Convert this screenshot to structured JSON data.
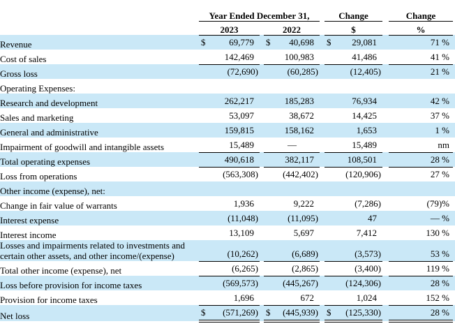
{
  "document_title": "Consolidated statements of operations comparison table",
  "colors": {
    "row_highlight": "#cae8f7",
    "text": "#000000",
    "rule": "#000000",
    "background": "#ffffff"
  },
  "table": {
    "header": {
      "year_group": "Year Ended December 31,",
      "change_dollar": "Change",
      "change_percent": "Change",
      "col_2023": "2023",
      "col_2022": "2022",
      "dollar_symbol": "$",
      "percent_symbol": "%"
    },
    "rows": [
      {
        "label": "Revenue",
        "sym1": "$",
        "v1": "69,779",
        "sym2": "$",
        "v2": "40,698",
        "sym3": "$",
        "v3": "29,081",
        "v4": "71 %",
        "highlight": true,
        "underline": "none"
      },
      {
        "label": "Cost of sales",
        "v1": "142,469",
        "v2": "100,983",
        "v3": "41,486",
        "v4": "41 %",
        "highlight": false,
        "underline": "single"
      },
      {
        "label": "Gross loss",
        "v1": "(72,690)",
        "v2": "(60,285)",
        "v3": "(12,405)",
        "v4": "21 %",
        "highlight": true,
        "underline": "none"
      },
      {
        "label": "Operating Expenses:",
        "section": true,
        "highlight": false
      },
      {
        "label": "Research and development",
        "v1": "262,217",
        "v2": "185,283",
        "v3": "76,934",
        "v4": "42 %",
        "highlight": true,
        "underline": "none"
      },
      {
        "label": "Sales and marketing",
        "v1": "53,097",
        "v2": "38,672",
        "v3": "14,425",
        "v4": "37 %",
        "highlight": false,
        "underline": "none"
      },
      {
        "label": "General and administrative",
        "v1": "159,815",
        "v2": "158,162",
        "v3": "1,653",
        "v4": "1 %",
        "highlight": true,
        "underline": "none"
      },
      {
        "label": "Impairment of goodwill and intangible assets",
        "v1": "15,489",
        "v2": "—",
        "center_v2": true,
        "v3": "15,489",
        "v4": "nm",
        "highlight": false,
        "underline": "single"
      },
      {
        "label": "Total operating expenses",
        "v1": "490,618",
        "v2": "382,117",
        "v3": "108,501",
        "v4": "28 %",
        "highlight": true,
        "underline": "single"
      },
      {
        "label": "Loss from operations",
        "v1": "(563,308)",
        "v2": "(442,402)",
        "v3": "(120,906)",
        "v4": "27 %",
        "highlight": false,
        "underline": "none"
      },
      {
        "label": "Other income (expense), net:",
        "section": true,
        "highlight": true
      },
      {
        "label": "Change in fair value of warrants",
        "v1": "1,936",
        "v2": "9,222",
        "v3": "(7,286)",
        "v4": "(79)%",
        "highlight": false,
        "underline": "none"
      },
      {
        "label": "Interest expense",
        "v1": "(11,048)",
        "v2": "(11,095)",
        "v3": "47",
        "v4": "— %",
        "highlight": true,
        "underline": "none"
      },
      {
        "label": "Interest income",
        "v1": "13,109",
        "v2": "5,697",
        "v3": "7,412",
        "v4": "130 %",
        "highlight": false,
        "underline": "none"
      },
      {
        "label": "Losses and impairments related to investments and certain other assets, and other income/(expense)",
        "v1": "(10,262)",
        "v2": "(6,689)",
        "v3": "(3,573)",
        "v4": "53 %",
        "highlight": true,
        "underline": "single"
      },
      {
        "label": "Total other income (expense), net",
        "v1": "(6,265)",
        "v2": "(2,865)",
        "v3": "(3,400)",
        "v4": "119 %",
        "highlight": false,
        "underline": "single"
      },
      {
        "label": "Loss before provision for income taxes",
        "v1": "(569,573)",
        "v2": "(445,267)",
        "v3": "(124,306)",
        "v4": "28 %",
        "highlight": true,
        "underline": "none"
      },
      {
        "label": "Provision for income taxes",
        "v1": "1,696",
        "v2": "672",
        "v3": "1,024",
        "v4": "152 %",
        "highlight": false,
        "underline": "single"
      },
      {
        "label": "Net loss",
        "sym1": "$",
        "v1": "(571,269)",
        "sym2": "$",
        "v2": "(445,939)",
        "sym3": "$",
        "v3": "(125,330)",
        "v4": "28 %",
        "highlight": true,
        "underline": "double"
      }
    ]
  }
}
